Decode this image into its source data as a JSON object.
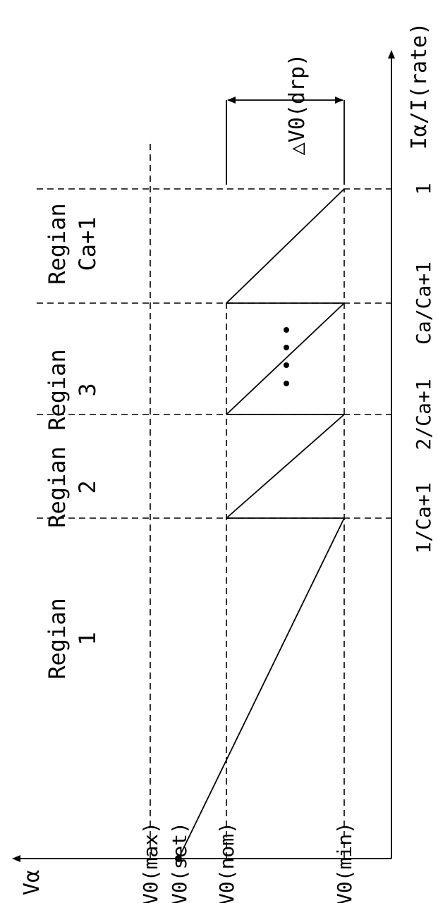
{
  "axes": {
    "y_label": "Vα",
    "x_label": "Iα/I(rate)"
  },
  "voltage_labels": {
    "max": "V0(max)",
    "set": "V0(set)",
    "nom": "V0(nom)",
    "min": "V0(min)"
  },
  "current_ticks": [
    "1/Ca+1",
    "2/Ca+1",
    "Ca/Ca+1",
    "1"
  ],
  "regions": [
    {
      "title": "Regian",
      "index": "1"
    },
    {
      "title": "Regian",
      "index": "2"
    },
    {
      "title": "Regian",
      "index": "3"
    },
    {
      "title": "Regian",
      "index": "Ca+1"
    }
  ],
  "droop_label": "△V0(drp)",
  "ellipsis": "••••"
}
